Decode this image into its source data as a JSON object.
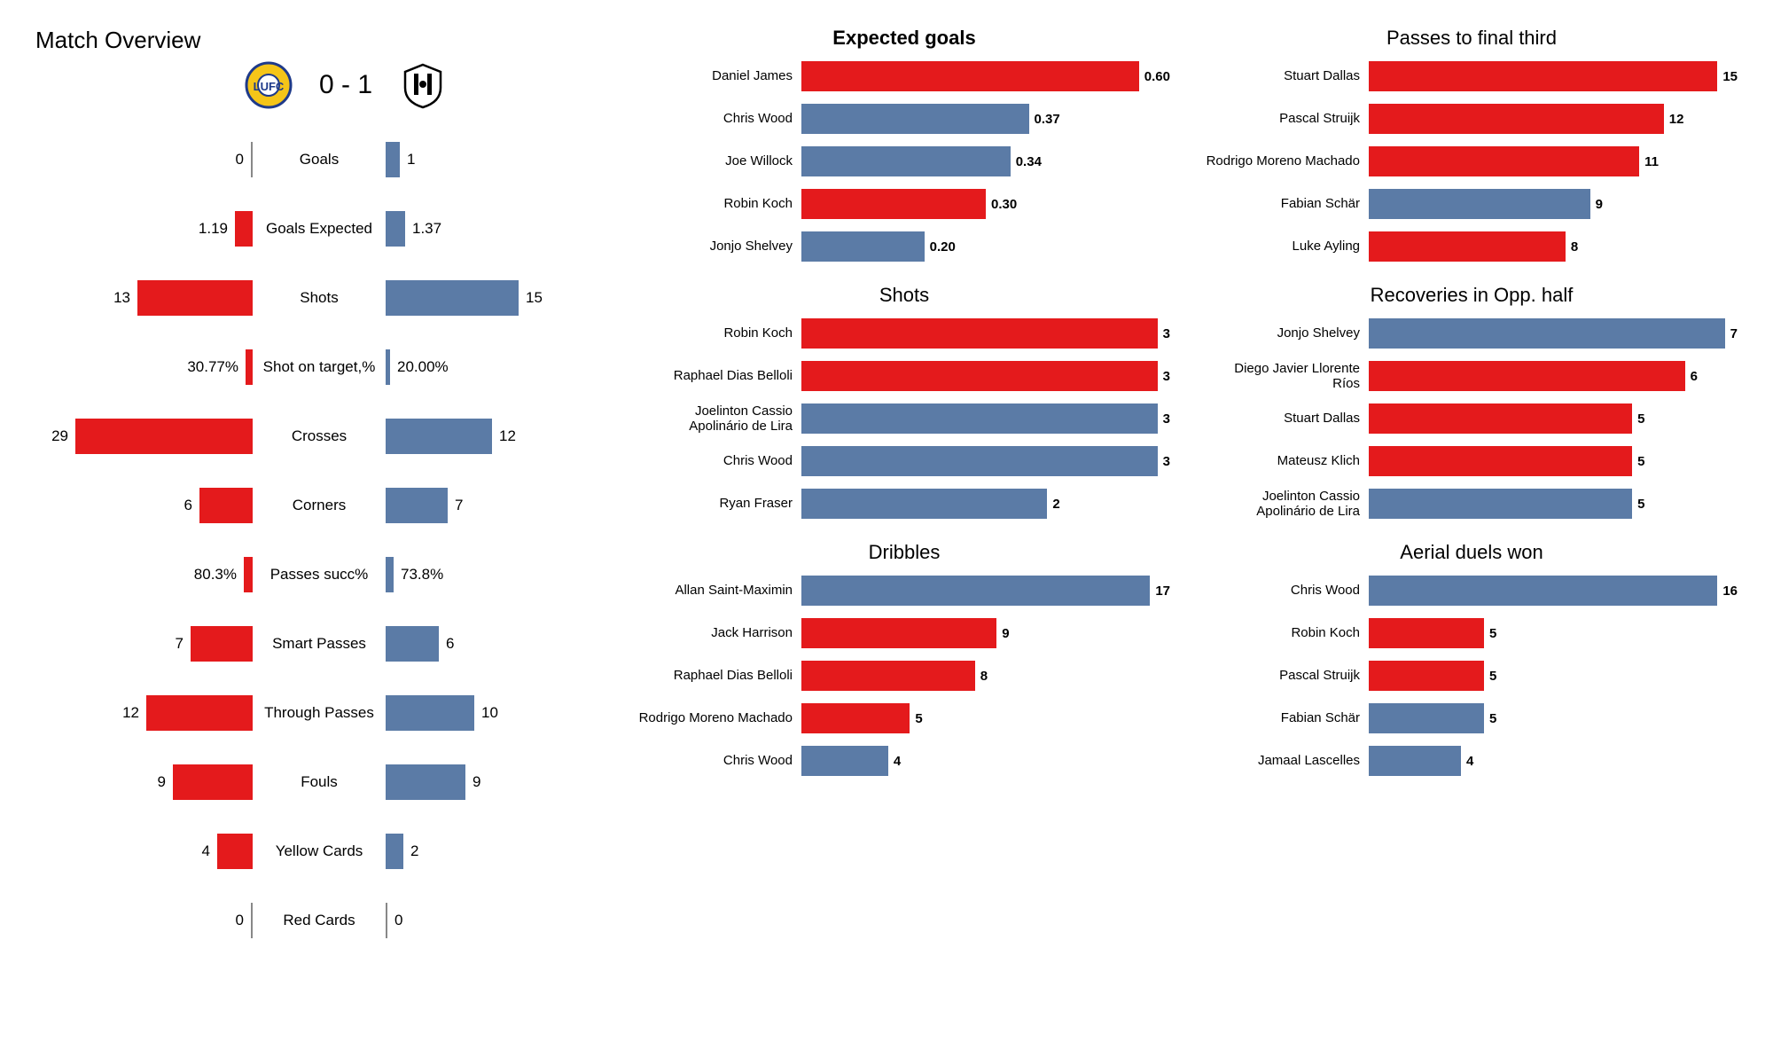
{
  "colors": {
    "home": "#e41a1c",
    "away": "#5b7ba6",
    "text": "#1a1a1a",
    "bg": "#ffffff"
  },
  "overview": {
    "title": "Match Overview",
    "score": "0 - 1",
    "home_badge": {
      "primary": "#f5c518",
      "secondary": "#1e3a8a"
    },
    "away_badge": {
      "primary": "#ffffff",
      "secondary": "#000000"
    },
    "bar_scale": 200,
    "rows": [
      {
        "label": "Goals",
        "home": "0",
        "away": "1",
        "home_w": 0,
        "away_w": 16
      },
      {
        "label": "Goals Expected",
        "home": "1.19",
        "away": "1.37",
        "home_w": 20,
        "away_w": 22
      },
      {
        "label": "Shots",
        "home": "13",
        "away": "15",
        "home_w": 130,
        "away_w": 150
      },
      {
        "label": "Shot on target,%",
        "home": "30.77%",
        "away": "20.00%",
        "home_w": 8,
        "away_w": 5
      },
      {
        "label": "Crosses",
        "home": "29",
        "away": "12",
        "home_w": 200,
        "away_w": 120
      },
      {
        "label": "Corners",
        "home": "6",
        "away": "7",
        "home_w": 60,
        "away_w": 70
      },
      {
        "label": "Passes succ%",
        "home": "80.3%",
        "away": "73.8%",
        "home_w": 10,
        "away_w": 9
      },
      {
        "label": "Smart Passes",
        "home": "7",
        "away": "6",
        "home_w": 70,
        "away_w": 60
      },
      {
        "label": "Through Passes",
        "home": "12",
        "away": "10",
        "home_w": 120,
        "away_w": 100
      },
      {
        "label": "Fouls",
        "home": "9",
        "away": "9",
        "home_w": 90,
        "away_w": 90
      },
      {
        "label": "Yellow Cards",
        "home": "4",
        "away": "2",
        "home_w": 40,
        "away_w": 20
      },
      {
        "label": "Red Cards",
        "home": "0",
        "away": "0",
        "home_w": 0,
        "away_w": 0
      }
    ]
  },
  "playerCharts": {
    "colA": [
      {
        "title": "Expected goals",
        "bold_title": true,
        "bold_vals": true,
        "max": 0.6,
        "rows": [
          {
            "name": "Daniel James",
            "val": "0.60",
            "v": 0.6,
            "team": "home"
          },
          {
            "name": "Chris Wood",
            "val": "0.37",
            "v": 0.37,
            "team": "away"
          },
          {
            "name": "Joe Willock",
            "val": "0.34",
            "v": 0.34,
            "team": "away"
          },
          {
            "name": "Robin Koch",
            "val": "0.30",
            "v": 0.3,
            "team": "home"
          },
          {
            "name": "Jonjo Shelvey",
            "val": "0.20",
            "v": 0.2,
            "team": "away"
          }
        ]
      },
      {
        "title": "Shots",
        "bold_title": false,
        "bold_vals": true,
        "max": 3,
        "rows": [
          {
            "name": "Robin Koch",
            "val": "3",
            "v": 3,
            "team": "home"
          },
          {
            "name": "Raphael Dias Belloli",
            "val": "3",
            "v": 3,
            "team": "home"
          },
          {
            "name": "Joelinton Cassio Apolinário de Lira",
            "val": "3",
            "v": 3,
            "team": "away"
          },
          {
            "name": "Chris Wood",
            "val": "3",
            "v": 3,
            "team": "away"
          },
          {
            "name": "Ryan Fraser",
            "val": "2",
            "v": 2,
            "team": "away"
          }
        ]
      },
      {
        "title": "Dribbles",
        "bold_title": false,
        "bold_vals": true,
        "max": 17,
        "rows": [
          {
            "name": "Allan Saint-Maximin",
            "val": "17",
            "v": 17,
            "team": "away"
          },
          {
            "name": "Jack Harrison",
            "val": "9",
            "v": 9,
            "team": "home"
          },
          {
            "name": "Raphael Dias Belloli",
            "val": "8",
            "v": 8,
            "team": "home"
          },
          {
            "name": "Rodrigo Moreno Machado",
            "val": "5",
            "v": 5,
            "team": "home"
          },
          {
            "name": "Chris Wood",
            "val": "4",
            "v": 4,
            "team": "away"
          }
        ]
      }
    ],
    "colB": [
      {
        "title": "Passes to final third",
        "bold_title": false,
        "bold_vals": true,
        "max": 15,
        "rows": [
          {
            "name": "Stuart Dallas",
            "val": "15",
            "v": 15,
            "team": "home"
          },
          {
            "name": "Pascal Struijk",
            "val": "12",
            "v": 12,
            "team": "home"
          },
          {
            "name": "Rodrigo Moreno Machado",
            "val": "11",
            "v": 11,
            "team": "home"
          },
          {
            "name": "Fabian Schär",
            "val": "9",
            "v": 9,
            "team": "away"
          },
          {
            "name": "Luke Ayling",
            "val": "8",
            "v": 8,
            "team": "home"
          }
        ]
      },
      {
        "title": "Recoveries in Opp. half",
        "bold_title": false,
        "bold_vals": true,
        "max": 7,
        "rows": [
          {
            "name": "Jonjo Shelvey",
            "val": "7",
            "v": 7,
            "team": "away"
          },
          {
            "name": "Diego Javier Llorente Ríos",
            "val": "6",
            "v": 6,
            "team": "home"
          },
          {
            "name": "Stuart Dallas",
            "val": "5",
            "v": 5,
            "team": "home"
          },
          {
            "name": "Mateusz Klich",
            "val": "5",
            "v": 5,
            "team": "home"
          },
          {
            "name": "Joelinton Cassio Apolinário de Lira",
            "val": "5",
            "v": 5,
            "team": "away"
          }
        ]
      },
      {
        "title": "Aerial duels won",
        "bold_title": false,
        "bold_vals": true,
        "max": 16,
        "rows": [
          {
            "name": "Chris Wood",
            "val": "16",
            "v": 16,
            "team": "away"
          },
          {
            "name": "Robin Koch",
            "val": "5",
            "v": 5,
            "team": "home"
          },
          {
            "name": "Pascal Struijk",
            "val": "5",
            "v": 5,
            "team": "home"
          },
          {
            "name": "Fabian Schär",
            "val": "5",
            "v": 5,
            "team": "away"
          },
          {
            "name": "Jamaal Lascelles",
            "val": "4",
            "v": 4,
            "team": "away"
          }
        ]
      }
    ]
  }
}
